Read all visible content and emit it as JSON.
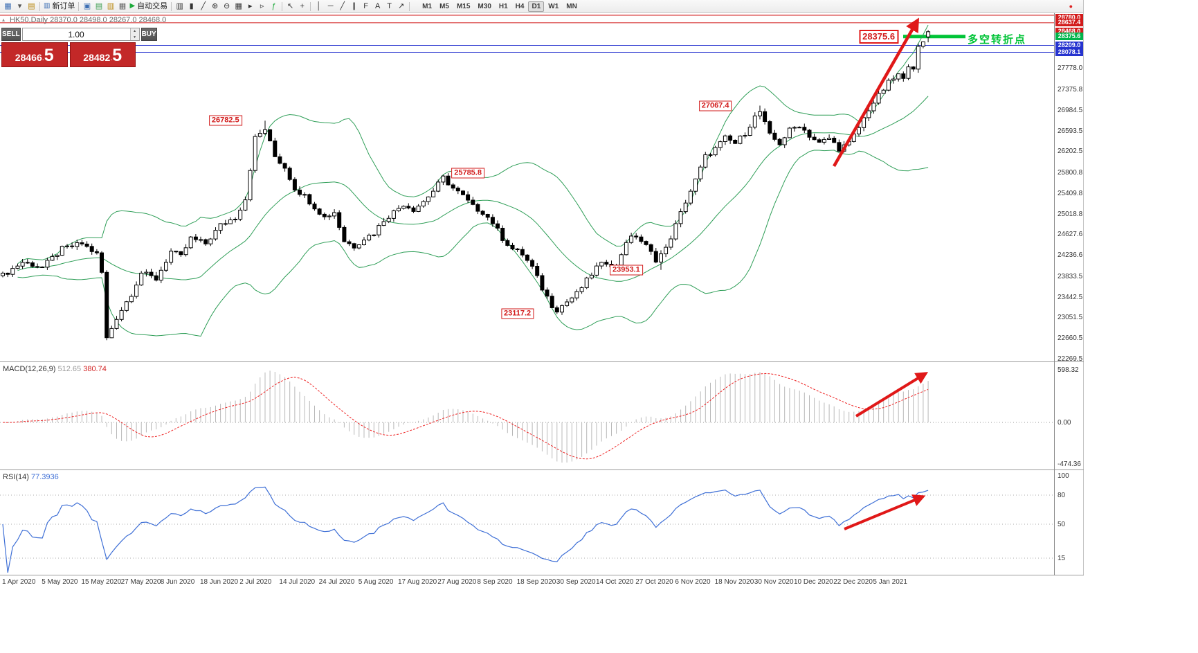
{
  "toolbar": {
    "items": [
      {
        "t": "i",
        "n": "new-chart-icon",
        "g": "▦",
        "c": "#3d6fb4"
      },
      {
        "t": "i",
        "n": "chart-dropdown-icon",
        "g": "▾",
        "c": "#555"
      },
      {
        "t": "i",
        "n": "profiles-icon",
        "g": "▤",
        "c": "#b8860b"
      },
      {
        "t": "s"
      },
      {
        "t": "b",
        "n": "new-order-button",
        "icon": "▥",
        "icon_color": "#3d6fb4",
        "label": "新订单"
      },
      {
        "t": "s"
      },
      {
        "t": "i",
        "n": "market-watch-icon",
        "g": "▣",
        "c": "#3d6fb4"
      },
      {
        "t": "i",
        "n": "data-window-icon",
        "g": "▤",
        "c": "#3d9e4f"
      },
      {
        "t": "i",
        "n": "navigator-icon",
        "g": "▥",
        "c": "#b8860b"
      },
      {
        "t": "i",
        "n": "terminal-icon",
        "g": "▦",
        "c": "#666666"
      },
      {
        "t": "b",
        "n": "autotrade-button",
        "icon": "▶",
        "icon_color": "#1faa3c",
        "label": "自动交易"
      },
      {
        "t": "s"
      },
      {
        "t": "i",
        "n": "bar-chart-type-icon",
        "g": "▥",
        "c": "#333333"
      },
      {
        "t": "i",
        "n": "candle-chart-type-icon",
        "g": "▮",
        "c": "#333333"
      },
      {
        "t": "i",
        "n": "line-chart-type-icon",
        "g": "╱",
        "c": "#333333"
      },
      {
        "t": "i",
        "n": "zoom-in-icon",
        "g": "⊕",
        "c": "#333333"
      },
      {
        "t": "i",
        "n": "zoom-out-icon",
        "g": "⊖",
        "c": "#333333"
      },
      {
        "t": "i",
        "n": "tile-windows-icon",
        "g": "▦",
        "c": "#333333"
      },
      {
        "t": "i",
        "n": "auto-scroll-icon",
        "g": "▸",
        "c": "#333333"
      },
      {
        "t": "i",
        "n": "chart-shift-icon",
        "g": "▹",
        "c": "#333333"
      },
      {
        "t": "i",
        "n": "indicators-icon",
        "g": "ƒ",
        "c": "#1faa3c"
      },
      {
        "t": "s"
      },
      {
        "t": "i",
        "n": "cursor-icon",
        "g": "↖",
        "c": "#333333"
      },
      {
        "t": "i",
        "n": "crosshair-icon",
        "g": "+",
        "c": "#333333"
      },
      {
        "t": "s"
      },
      {
        "t": "i",
        "n": "vertical-line-icon",
        "g": "│",
        "c": "#333333"
      },
      {
        "t": "i",
        "n": "horizontal-line-icon",
        "g": "─",
        "c": "#333333"
      },
      {
        "t": "i",
        "n": "trendline-icon",
        "g": "╱",
        "c": "#333333"
      },
      {
        "t": "i",
        "n": "channel-icon",
        "g": "∥",
        "c": "#333333"
      },
      {
        "t": "i",
        "n": "fibonacci-icon",
        "g": "F",
        "c": "#333333"
      },
      {
        "t": "i",
        "n": "text-icon",
        "g": "A",
        "c": "#333333"
      },
      {
        "t": "i",
        "n": "text-label-icon",
        "g": "T",
        "c": "#333333"
      },
      {
        "t": "i",
        "n": "arrows-tool-icon",
        "g": "↗",
        "c": "#333333"
      },
      {
        "t": "s"
      }
    ],
    "timeframes": [
      "M1",
      "M5",
      "M15",
      "M30",
      "H1",
      "H4",
      "D1",
      "W1",
      "MN"
    ],
    "active_timeframe": "D1",
    "right_items": [
      {
        "n": "notification-icon",
        "g": "●",
        "c": "#dd2222"
      }
    ]
  },
  "chart": {
    "symbol_title": "HK50,Daily 28370.0 28498.0 28267.0 28468.0",
    "trade_panel": {
      "sell_label": "SELL",
      "buy_label": "BUY",
      "volume": "1.00",
      "sell_price": {
        "main": "28466",
        "dot": ".",
        "big": "5"
      },
      "buy_price": {
        "main": "28482",
        "dot": ".",
        "big": "5"
      }
    },
    "annotation": {
      "text": "多空转折点",
      "color": "#00c437"
    },
    "price_scale": {
      "boxed": [
        {
          "text": "28780.0",
          "price": 28780.0,
          "color": "#d21a1a"
        },
        {
          "text": "28637.4",
          "price": 28637.4,
          "color": "#d21a1a"
        },
        {
          "text": "28468.0",
          "price": 28468.0,
          "color": "#d21a1a"
        },
        {
          "text": "28375.6",
          "price": 28375.6,
          "color": "#00b44a"
        },
        {
          "text": "28209.0",
          "price": 28209.0,
          "color": "#2633cf"
        },
        {
          "text": "28078.1",
          "price": 28078.1,
          "color": "#2633cf"
        }
      ],
      "ticks": [
        {
          "text": "27778.0",
          "price": 27778.0
        },
        {
          "text": "27375.8",
          "price": 27375.8
        },
        {
          "text": "26984.5",
          "price": 26984.5
        },
        {
          "text": "26593.5",
          "price": 26593.5
        },
        {
          "text": "26202.5",
          "price": 26202.5
        },
        {
          "text": "25800.8",
          "price": 25800.8
        },
        {
          "text": "25409.8",
          "price": 25409.8
        },
        {
          "text": "25018.8",
          "price": 25018.8
        },
        {
          "text": "24627.6",
          "price": 24627.6
        },
        {
          "text": "24236.6",
          "price": 24236.6
        },
        {
          "text": "23833.5",
          "price": 23833.5
        },
        {
          "text": "23442.5",
          "price": 23442.5
        },
        {
          "text": "23051.5",
          "price": 23051.5
        },
        {
          "text": "22660.5",
          "price": 22660.5
        },
        {
          "text": "22269.5",
          "price": 22269.5
        }
      ]
    },
    "price_labels": [
      {
        "text": "26782.5",
        "bar": 45,
        "price": 26782.5,
        "big": false
      },
      {
        "text": "25785.8",
        "bar": 94,
        "price": 25785.8,
        "big": false
      },
      {
        "text": "27067.4",
        "bar": 144,
        "price": 27067.4,
        "big": false
      },
      {
        "text": "23953.1",
        "bar": 126,
        "price": 23953.1,
        "big": false
      },
      {
        "text": "23117.2",
        "bar": 104,
        "price": 23117.2,
        "big": false
      },
      {
        "text": "28375.6",
        "bar": 177,
        "price": 28375.6,
        "big": true
      }
    ]
  },
  "macd": {
    "name": "MACD(12,26,9)",
    "value1": "512.65",
    "value2": "380.74",
    "scale": [
      {
        "text": "598.32",
        "v": 598.32
      },
      {
        "text": "0.00",
        "v": 0
      },
      {
        "text": "-474.36",
        "v": -474.36
      }
    ]
  },
  "rsi": {
    "name": "RSI(14)",
    "value": "77.3936",
    "scale": [
      {
        "text": "100",
        "v": 100
      },
      {
        "text": "80",
        "v": 80
      },
      {
        "text": "50",
        "v": 50
      },
      {
        "text": "15",
        "v": 15
      }
    ],
    "levels": [
      80,
      50,
      15
    ]
  },
  "time_axis": {
    "bars_per_label": 8,
    "labels": [
      "1 Apr 2020",
      "5 May 2020",
      "15 May 2020",
      "27 May 2020",
      "8 Jun 2020",
      "18 Jun 2020",
      "2 Jul 2020",
      "14 Jul 2020",
      "24 Jul 2020",
      "5 Aug 2020",
      "17 Aug 2020",
      "27 Aug 2020",
      "8 Sep 2020",
      "18 Sep 2020",
      "30 Sep 2020",
      "14 Oct 2020",
      "27 Oct 2020",
      "6 Nov 2020",
      "18 Nov 2020",
      "30 Nov 2020",
      "10 Dec 2020",
      "22 Dec 2020",
      "5 Jan 2021"
    ]
  },
  "icons": {
    "collapse": "▴",
    "spinner_up": "▲",
    "spinner_down": "▼"
  },
  "chart_data": {
    "type": "candlestick",
    "symbol": "HK50",
    "timeframe": "Daily",
    "current_ohlc": {
      "open": 28370.0,
      "high": 28498.0,
      "low": 28267.0,
      "close": 28468.0
    },
    "bid": "28466.5",
    "ask": "28482.5",
    "bar_count": 188,
    "y_range": [
      22269.5,
      28780.0
    ],
    "close_anchors": [
      [
        0,
        23850
      ],
      [
        4,
        24100
      ],
      [
        8,
        24000
      ],
      [
        12,
        24350
      ],
      [
        16,
        24450
      ],
      [
        19,
        24250
      ],
      [
        20,
        23900
      ],
      [
        21,
        22650
      ],
      [
        23,
        23050
      ],
      [
        26,
        23500
      ],
      [
        28,
        23900
      ],
      [
        31,
        23780
      ],
      [
        34,
        24300
      ],
      [
        36,
        24200
      ],
      [
        38,
        24550
      ],
      [
        41,
        24450
      ],
      [
        44,
        24800
      ],
      [
        47,
        24950
      ],
      [
        49,
        25300
      ],
      [
        51,
        26450
      ],
      [
        53,
        26620
      ],
      [
        55,
        26100
      ],
      [
        57,
        25900
      ],
      [
        59,
        25500
      ],
      [
        61,
        25350
      ],
      [
        63,
        25150
      ],
      [
        65,
        24950
      ],
      [
        67,
        25050
      ],
      [
        69,
        24500
      ],
      [
        71,
        24400
      ],
      [
        73,
        24550
      ],
      [
        75,
        24650
      ],
      [
        77,
        24900
      ],
      [
        79,
        25050
      ],
      [
        81,
        25200
      ],
      [
        83,
        25100
      ],
      [
        85,
        25250
      ],
      [
        87,
        25450
      ],
      [
        89,
        25700
      ],
      [
        91,
        25500
      ],
      [
        93,
        25350
      ],
      [
        95,
        25150
      ],
      [
        97,
        25050
      ],
      [
        99,
        24850
      ],
      [
        101,
        24550
      ],
      [
        103,
        24350
      ],
      [
        105,
        24250
      ],
      [
        107,
        24000
      ],
      [
        109,
        23600
      ],
      [
        111,
        23280
      ],
      [
        112,
        23200
      ],
      [
        114,
        23350
      ],
      [
        116,
        23500
      ],
      [
        118,
        23750
      ],
      [
        120,
        24000
      ],
      [
        122,
        24100
      ],
      [
        124,
        24020
      ],
      [
        126,
        24500
      ],
      [
        128,
        24600
      ],
      [
        130,
        24400
      ],
      [
        132,
        24150
      ],
      [
        134,
        24350
      ],
      [
        136,
        24800
      ],
      [
        138,
        25250
      ],
      [
        140,
        25650
      ],
      [
        142,
        26100
      ],
      [
        144,
        26250
      ],
      [
        146,
        26450
      ],
      [
        148,
        26350
      ],
      [
        150,
        26550
      ],
      [
        152,
        26850
      ],
      [
        153,
        26950
      ],
      [
        155,
        26500
      ],
      [
        157,
        26350
      ],
      [
        159,
        26600
      ],
      [
        161,
        26700
      ],
      [
        163,
        26500
      ],
      [
        165,
        26350
      ],
      [
        167,
        26450
      ],
      [
        169,
        26250
      ],
      [
        171,
        26350
      ],
      [
        173,
        26650
      ],
      [
        175,
        27000
      ],
      [
        177,
        27250
      ],
      [
        179,
        27500
      ],
      [
        181,
        27650
      ],
      [
        182,
        27550
      ],
      [
        183,
        27850
      ],
      [
        184,
        27800
      ],
      [
        185,
        28150
      ],
      [
        186,
        28276
      ],
      [
        187,
        28468
      ]
    ],
    "forced_points": {
      "high": {
        "53": 26782.5,
        "90": 25785.8,
        "153": 27067.4
      },
      "low": {
        "112": 23117.2,
        "133": 23953.1
      },
      "last_bar": {
        "open": 28370.0,
        "high": 28498.0,
        "low": 28267.0,
        "close": 28468.0
      }
    },
    "levels": {
      "resistance_red": [
        28780.0,
        28637.4
      ],
      "turning_point_green": 28375.6,
      "support_blue": [
        28209.0,
        28078.1
      ],
      "green_segment_x": [
        1305,
        1395
      ]
    },
    "swing_annotations": [
      26782.5,
      25785.8,
      27067.4,
      23953.1,
      23117.2,
      28375.6
    ],
    "indicators": [
      {
        "name": "Bollinger Bands",
        "period": 20,
        "deviation": 2,
        "color": "#2e9e57"
      },
      {
        "name": "MACD",
        "fast": 12,
        "slow": 26,
        "signal": 9,
        "current": [
          512.65,
          380.74
        ],
        "scale_range": [
          -474.36,
          598.32
        ]
      },
      {
        "name": "RSI",
        "period": 14,
        "current": 77.3936,
        "levels": [
          80,
          50,
          15
        ]
      }
    ]
  }
}
